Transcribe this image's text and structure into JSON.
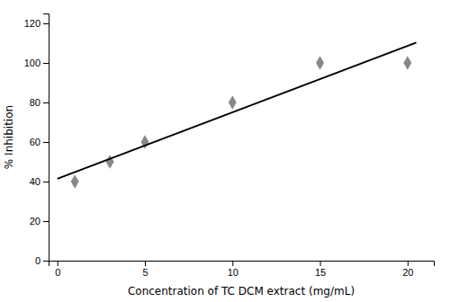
{
  "chart_data": {
    "type": "scatter",
    "xlabel": "Concentration of TC DCM extract (mg/mL)",
    "ylabel": "% Inhibition",
    "series": [
      {
        "type": "scatter",
        "color": "#888888",
        "marker": "diamond",
        "x": [
          1,
          3,
          5,
          10,
          15,
          20
        ],
        "values": [
          40,
          50,
          60,
          80,
          100,
          100
        ]
      },
      {
        "type": "line",
        "color": "#000000",
        "x": [
          0.0,
          20.5
        ],
        "values": [
          41.44768856447689,
          110.27980535279805
        ]
      }
    ],
    "xlim": [
      -0.5,
      21.5
    ],
    "xticks": [
      0,
      5,
      10,
      15,
      20
    ],
    "ylim": [
      0,
      125
    ],
    "yticks": [
      0,
      20,
      40,
      60,
      80,
      100,
      120
    ]
  }
}
